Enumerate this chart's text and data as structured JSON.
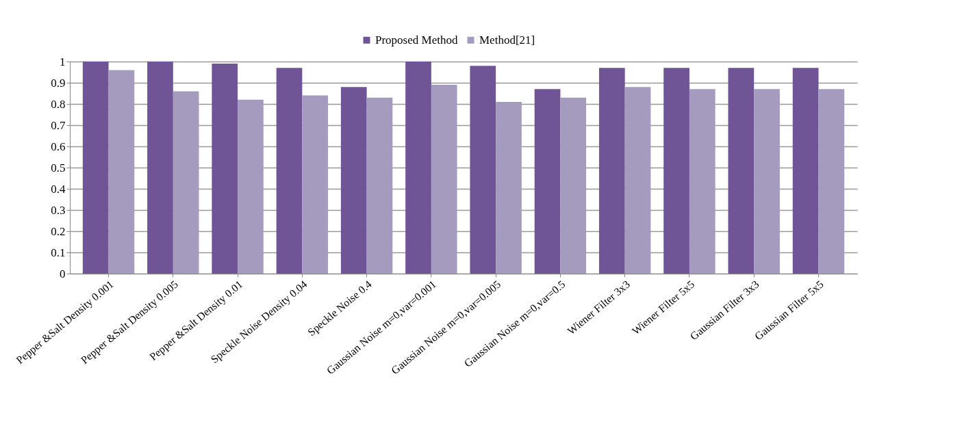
{
  "chart_data": {
    "type": "bar",
    "categories": [
      "Pepper &Salt Density 0.001",
      "Pepper &Salt Density 0.005",
      "Pepper &Salt Density 0.01",
      "Speckle Noise Density 0.04",
      "Speckle Noise 0.4",
      "Gaussian Noise m=0,var=0.001",
      "Gaussian Noise m=0,var=0.005",
      "Gaussian Noise m=0,var=0.5",
      "Wiener Filter 3x3",
      "Wiener Filter 5x5",
      "Gaussian Filter 3x3",
      "Gaussian Filter 5x5"
    ],
    "series": [
      {
        "name": "Proposed Method",
        "color": "#6f5496",
        "values": [
          1.0,
          1.0,
          0.99,
          0.97,
          0.88,
          1.0,
          0.98,
          0.87,
          0.97,
          0.97,
          0.97,
          0.97
        ]
      },
      {
        "name": "Method[21]",
        "color": "#a59bbf",
        "values": [
          0.96,
          0.86,
          0.82,
          0.84,
          0.83,
          0.89,
          0.81,
          0.83,
          0.88,
          0.87,
          0.87,
          0.87
        ]
      }
    ],
    "ylim": [
      0,
      1
    ],
    "yticks": [
      0,
      0.1,
      0.2,
      0.3,
      0.4,
      0.5,
      0.6,
      0.7,
      0.8,
      0.9,
      1
    ],
    "grid": "y",
    "legend": "top"
  }
}
